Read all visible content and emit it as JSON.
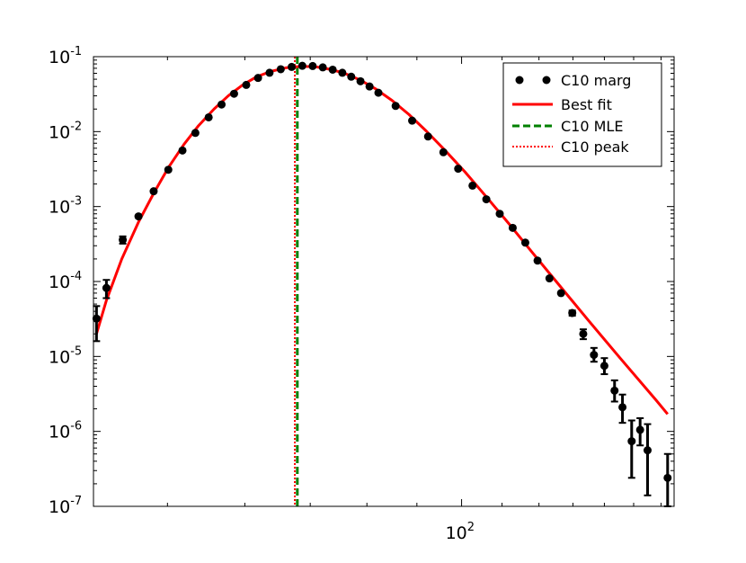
{
  "chart_data": {
    "type": "scatter",
    "x_scale": "log",
    "y_scale": "log",
    "xlim": [
      42,
      165
    ],
    "ylim": [
      1e-07,
      0.1
    ],
    "grid": false,
    "legend_position": "top-right",
    "x_ticks": [
      {
        "value": 100,
        "base": "10",
        "exp": "2"
      }
    ],
    "y_ticks": [
      {
        "value": 1e-07,
        "base": "10",
        "exp": "-7"
      },
      {
        "value": 1e-06,
        "base": "10",
        "exp": "-6"
      },
      {
        "value": 1e-05,
        "base": "10",
        "exp": "-5"
      },
      {
        "value": 0.0001,
        "base": "10",
        "exp": "-4"
      },
      {
        "value": 0.001,
        "base": "10",
        "exp": "-3"
      },
      {
        "value": 0.01,
        "base": "10",
        "exp": "-2"
      },
      {
        "value": 0.1,
        "base": "10",
        "exp": "-1"
      }
    ],
    "series": [
      {
        "name": "C10 marg",
        "kind": "errorbar-points",
        "color": "#000000",
        "points": [
          {
            "x": 42.3,
            "y": 3.2e-05,
            "lo": 1.6e-05,
            "hi": 4.7e-05
          },
          {
            "x": 43.3,
            "y": 8.2e-05,
            "lo": 6e-05,
            "hi": 0.000105
          },
          {
            "x": 45.0,
            "y": 0.00036,
            "lo": 0.00032,
            "hi": 0.0004
          },
          {
            "x": 46.7,
            "y": 0.00074
          },
          {
            "x": 48.4,
            "y": 0.0016
          },
          {
            "x": 50.1,
            "y": 0.0031
          },
          {
            "x": 51.8,
            "y": 0.0056
          },
          {
            "x": 53.4,
            "y": 0.0096
          },
          {
            "x": 55.1,
            "y": 0.0155
          },
          {
            "x": 56.8,
            "y": 0.023
          },
          {
            "x": 58.5,
            "y": 0.032
          },
          {
            "x": 60.2,
            "y": 0.042
          },
          {
            "x": 61.9,
            "y": 0.052
          },
          {
            "x": 63.6,
            "y": 0.061
          },
          {
            "x": 65.3,
            "y": 0.068
          },
          {
            "x": 67.0,
            "y": 0.073
          },
          {
            "x": 68.7,
            "y": 0.0755
          },
          {
            "x": 70.4,
            "y": 0.075
          },
          {
            "x": 72.1,
            "y": 0.072
          },
          {
            "x": 73.8,
            "y": 0.067
          },
          {
            "x": 75.5,
            "y": 0.061
          },
          {
            "x": 77.1,
            "y": 0.054
          },
          {
            "x": 78.8,
            "y": 0.047
          },
          {
            "x": 80.5,
            "y": 0.04
          },
          {
            "x": 82.2,
            "y": 0.033
          },
          {
            "x": 85.6,
            "y": 0.022
          },
          {
            "x": 89.0,
            "y": 0.014
          },
          {
            "x": 92.4,
            "y": 0.0086
          },
          {
            "x": 95.8,
            "y": 0.0053
          },
          {
            "x": 99.2,
            "y": 0.0032
          },
          {
            "x": 102.6,
            "y": 0.0019
          },
          {
            "x": 106.0,
            "y": 0.00125
          },
          {
            "x": 109.4,
            "y": 0.0008
          },
          {
            "x": 112.8,
            "y": 0.00052
          },
          {
            "x": 116.2,
            "y": 0.00033
          },
          {
            "x": 119.6,
            "y": 0.00019
          },
          {
            "x": 123.0,
            "y": 0.00011
          },
          {
            "x": 126.4,
            "y": 7e-05
          },
          {
            "x": 129.8,
            "y": 3.8e-05,
            "lo": 3.5e-05,
            "hi": 4.1e-05
          },
          {
            "x": 133.2,
            "y": 2e-05,
            "lo": 1.7e-05,
            "hi": 2.3e-05
          },
          {
            "x": 136.6,
            "y": 1.05e-05,
            "lo": 8.5e-06,
            "hi": 1.3e-05
          },
          {
            "x": 140.0,
            "y": 7.5e-06,
            "lo": 5.8e-06,
            "hi": 9.5e-06
          },
          {
            "x": 143.4,
            "y": 3.5e-06,
            "lo": 2.5e-06,
            "hi": 4.8e-06
          },
          {
            "x": 146.1,
            "y": 2.1e-06,
            "lo": 1.3e-06,
            "hi": 3.1e-06
          },
          {
            "x": 149.3,
            "y": 7.4e-07,
            "lo": 2.4e-07,
            "hi": 1.4e-06
          },
          {
            "x": 152.3,
            "y": 1.05e-06,
            "lo": 6.5e-07,
            "hi": 1.5e-06
          },
          {
            "x": 155.0,
            "y": 5.6e-07,
            "lo": 1.4e-07,
            "hi": 1.25e-06
          },
          {
            "x": 162.5,
            "y": 2.4e-07,
            "lo": 1e-07,
            "hi": 5e-07
          }
        ]
      },
      {
        "name": "Best fit",
        "kind": "line",
        "color": "#ff0000",
        "style": "solid",
        "points": [
          [
            42.3,
            2e-05
          ],
          [
            43.3,
            5.6e-05
          ],
          [
            44.9,
            0.0002
          ],
          [
            46.7,
            0.00062
          ],
          [
            48.4,
            0.0015
          ],
          [
            50.1,
            0.0033
          ],
          [
            52.0,
            0.0068
          ],
          [
            53.8,
            0.012
          ],
          [
            55.8,
            0.02
          ],
          [
            57.7,
            0.03
          ],
          [
            59.7,
            0.042
          ],
          [
            61.7,
            0.054
          ],
          [
            63.9,
            0.064
          ],
          [
            66.1,
            0.071
          ],
          [
            68.3,
            0.074
          ],
          [
            70.8,
            0.0735
          ],
          [
            73.3,
            0.068
          ],
          [
            75.9,
            0.06
          ],
          [
            78.7,
            0.049
          ],
          [
            81.7,
            0.037
          ],
          [
            84.9,
            0.026
          ],
          [
            88.3,
            0.017
          ],
          [
            92.0,
            0.0102
          ],
          [
            96.2,
            0.0056
          ],
          [
            100.8,
            0.0029
          ],
          [
            106.0,
            0.00135
          ],
          [
            111.8,
            0.00059
          ],
          [
            118.4,
            0.000235
          ],
          [
            126.0,
            8.8e-05
          ],
          [
            134.9,
            3e-05
          ],
          [
            145.3,
            9.5e-06
          ],
          [
            158.2,
            2.6e-06
          ],
          [
            162.5,
            1.7e-06
          ]
        ]
      },
      {
        "name": "C10 MLE",
        "kind": "vline",
        "x": 67.9,
        "color": "#008000",
        "style": "dashed"
      },
      {
        "name": "C10 peak",
        "kind": "vline",
        "x": 67.5,
        "color": "#ff0000",
        "style": "dotted"
      }
    ]
  }
}
